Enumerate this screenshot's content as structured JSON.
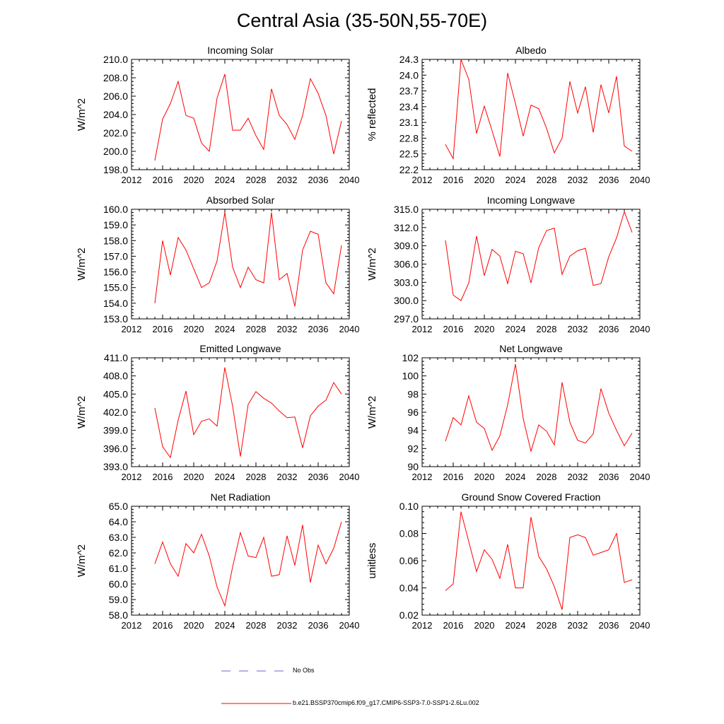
{
  "page": {
    "title": "Central Asia (35-50N,55-70E)"
  },
  "colors": {
    "series": "#ff0000",
    "noobs": "#6a6ad6",
    "axis": "#000000"
  },
  "legend": {
    "noobs_label": "No Obs",
    "series_label": "b.e21.BSSP370cmip6.f09_g17.CMIP6-SSP3-7.0-SSP1-2.6Lu.002"
  },
  "chart_data": [
    {
      "type": "line",
      "title": "Incoming Solar",
      "ylabel": "W/m^2",
      "xlim": [
        2012,
        2040
      ],
      "ylim": [
        198.0,
        210.0
      ],
      "xticks": [
        2012,
        2016,
        2020,
        2024,
        2028,
        2032,
        2036,
        2040
      ],
      "yticks": [
        198.0,
        200.0,
        202.0,
        204.0,
        206.0,
        208.0,
        210.0
      ],
      "ytick_labels": [
        "198.0",
        "200.0",
        "202.0",
        "204.0",
        "206.0",
        "208.0",
        "210.0"
      ],
      "x": [
        2015,
        2016,
        2017,
        2018,
        2019,
        2020,
        2021,
        2022,
        2023,
        2024,
        2025,
        2026,
        2027,
        2028,
        2029,
        2030,
        2031,
        2032,
        2033,
        2034,
        2035,
        2036,
        2037,
        2038,
        2039
      ],
      "series": [
        {
          "values": [
            199.0,
            203.5,
            205.2,
            207.6,
            203.9,
            203.6,
            200.9,
            200.0,
            205.8,
            208.4,
            202.3,
            202.3,
            203.6,
            201.7,
            200.2,
            206.8,
            203.9,
            202.9,
            201.3,
            203.9,
            207.9,
            206.3,
            203.9,
            199.7,
            203.3
          ]
        }
      ]
    },
    {
      "type": "line",
      "title": "Albedo",
      "ylabel": "% reflected",
      "xlim": [
        2012,
        2040
      ],
      "ylim": [
        22.2,
        24.3
      ],
      "xticks": [
        2012,
        2016,
        2020,
        2024,
        2028,
        2032,
        2036,
        2040
      ],
      "yticks": [
        22.2,
        22.5,
        22.8,
        23.1,
        23.4,
        23.7,
        24.0,
        24.3
      ],
      "ytick_labels": [
        "22.2",
        "22.5",
        "22.8",
        "23.1",
        "23.4",
        "23.7",
        "24.0",
        "24.3"
      ],
      "x": [
        2015,
        2016,
        2017,
        2018,
        2019,
        2020,
        2021,
        2022,
        2023,
        2024,
        2025,
        2026,
        2027,
        2028,
        2029,
        2030,
        2031,
        2032,
        2033,
        2034,
        2035,
        2036,
        2037,
        2038,
        2039
      ],
      "series": [
        {
          "values": [
            22.68,
            22.41,
            24.3,
            23.92,
            22.89,
            23.41,
            22.94,
            22.45,
            24.04,
            23.46,
            22.84,
            23.43,
            23.36,
            22.99,
            22.52,
            22.8,
            23.88,
            23.28,
            23.78,
            22.91,
            23.82,
            23.28,
            23.98,
            22.65,
            22.55
          ]
        }
      ]
    },
    {
      "type": "line",
      "title": "Absorbed Solar",
      "ylabel": "W/m^2",
      "xlim": [
        2012,
        2040
      ],
      "ylim": [
        153.0,
        160.0
      ],
      "xticks": [
        2012,
        2016,
        2020,
        2024,
        2028,
        2032,
        2036,
        2040
      ],
      "yticks": [
        153.0,
        154.0,
        155.0,
        156.0,
        157.0,
        158.0,
        159.0,
        160.0
      ],
      "ytick_labels": [
        "153.0",
        "154.0",
        "155.0",
        "156.0",
        "157.0",
        "158.0",
        "159.0",
        "160.0"
      ],
      "x": [
        2015,
        2016,
        2017,
        2018,
        2019,
        2020,
        2021,
        2022,
        2023,
        2024,
        2025,
        2026,
        2027,
        2028,
        2029,
        2030,
        2031,
        2032,
        2033,
        2034,
        2035,
        2036,
        2037,
        2038,
        2039
      ],
      "series": [
        {
          "values": [
            154.0,
            158.0,
            155.8,
            158.2,
            157.4,
            156.2,
            155.0,
            155.3,
            156.7,
            159.8,
            156.3,
            155.0,
            156.3,
            155.5,
            155.3,
            159.8,
            155.5,
            155.9,
            153.8,
            157.4,
            158.6,
            158.4,
            155.3,
            154.6,
            157.7
          ]
        }
      ]
    },
    {
      "type": "line",
      "title": "Incoming Longwave",
      "ylabel": "W/m^2",
      "xlim": [
        2012,
        2040
      ],
      "ylim": [
        297.0,
        315.0
      ],
      "xticks": [
        2012,
        2016,
        2020,
        2024,
        2028,
        2032,
        2036,
        2040
      ],
      "yticks": [
        297.0,
        300.0,
        303.0,
        306.0,
        309.0,
        312.0,
        315.0
      ],
      "ytick_labels": [
        "297.0",
        "300.0",
        "303.0",
        "306.0",
        "309.0",
        "312.0",
        "315.0"
      ],
      "x": [
        2015,
        2016,
        2017,
        2018,
        2019,
        2020,
        2021,
        2022,
        2023,
        2024,
        2025,
        2026,
        2027,
        2028,
        2029,
        2030,
        2031,
        2032,
        2033,
        2034,
        2035,
        2036,
        2037,
        2038,
        2039
      ],
      "series": [
        {
          "values": [
            309.9,
            300.9,
            300.0,
            302.9,
            310.6,
            304.1,
            308.4,
            307.3,
            302.8,
            308.1,
            307.7,
            302.9,
            308.7,
            311.5,
            311.9,
            304.3,
            307.3,
            308.2,
            308.6,
            302.5,
            302.8,
            307.2,
            310.3,
            314.6,
            311.2
          ]
        }
      ]
    },
    {
      "type": "line",
      "title": "Emitted Longwave",
      "ylabel": "W/m^2",
      "xlim": [
        2012,
        2040
      ],
      "ylim": [
        393.0,
        411.0
      ],
      "xticks": [
        2012,
        2016,
        2020,
        2024,
        2028,
        2032,
        2036,
        2040
      ],
      "yticks": [
        393.0,
        396.0,
        399.0,
        402.0,
        405.0,
        408.0,
        411.0
      ],
      "ytick_labels": [
        "393.0",
        "396.0",
        "399.0",
        "402.0",
        "405.0",
        "408.0",
        "411.0"
      ],
      "x": [
        2015,
        2016,
        2017,
        2018,
        2019,
        2020,
        2021,
        2022,
        2023,
        2024,
        2025,
        2026,
        2027,
        2028,
        2029,
        2030,
        2031,
        2032,
        2033,
        2034,
        2035,
        2036,
        2037,
        2038,
        2039
      ],
      "series": [
        {
          "values": [
            402.7,
            396.3,
            394.5,
            400.7,
            405.5,
            398.3,
            400.5,
            400.9,
            399.7,
            409.4,
            403.0,
            394.7,
            403.3,
            405.4,
            404.3,
            403.5,
            402.2,
            401.1,
            401.2,
            396.1,
            401.4,
            403.0,
            404.0,
            406.9,
            405.0
          ]
        }
      ]
    },
    {
      "type": "line",
      "title": "Net Longwave",
      "ylabel": "W/m^2",
      "xlim": [
        2012,
        2040
      ],
      "ylim": [
        90,
        102
      ],
      "xticks": [
        2012,
        2016,
        2020,
        2024,
        2028,
        2032,
        2036,
        2040
      ],
      "yticks": [
        90,
        92,
        94,
        96,
        98,
        100,
        102
      ],
      "ytick_labels": [
        "90",
        "92",
        "94",
        "96",
        "98",
        "100",
        "102"
      ],
      "x": [
        2015,
        2016,
        2017,
        2018,
        2019,
        2020,
        2021,
        2022,
        2023,
        2024,
        2025,
        2026,
        2027,
        2028,
        2029,
        2030,
        2031,
        2032,
        2033,
        2034,
        2035,
        2036,
        2037,
        2038,
        2039
      ],
      "series": [
        {
          "values": [
            92.8,
            95.4,
            94.6,
            97.8,
            94.9,
            94.2,
            91.8,
            93.4,
            96.8,
            101.3,
            95.3,
            91.7,
            94.6,
            93.9,
            92.4,
            99.3,
            94.9,
            92.9,
            92.6,
            93.6,
            98.6,
            95.9,
            94.0,
            92.3,
            93.7
          ]
        }
      ]
    },
    {
      "type": "line",
      "title": "Net Radiation",
      "ylabel": "W/m^2",
      "xlim": [
        2012,
        2040
      ],
      "ylim": [
        58.0,
        65.0
      ],
      "xticks": [
        2012,
        2016,
        2020,
        2024,
        2028,
        2032,
        2036,
        2040
      ],
      "yticks": [
        58.0,
        59.0,
        60.0,
        61.0,
        62.0,
        63.0,
        64.0,
        65.0
      ],
      "ytick_labels": [
        "58.0",
        "59.0",
        "60.0",
        "61.0",
        "62.0",
        "63.0",
        "64.0",
        "65.0"
      ],
      "x": [
        2015,
        2016,
        2017,
        2018,
        2019,
        2020,
        2021,
        2022,
        2023,
        2024,
        2025,
        2026,
        2027,
        2028,
        2029,
        2030,
        2031,
        2032,
        2033,
        2034,
        2035,
        2036,
        2037,
        2038,
        2039
      ],
      "series": [
        {
          "values": [
            61.3,
            62.7,
            61.3,
            60.5,
            62.6,
            62.0,
            63.2,
            61.8,
            59.8,
            58.6,
            61.1,
            63.3,
            61.8,
            61.7,
            63.0,
            60.5,
            60.6,
            63.1,
            61.2,
            63.8,
            60.1,
            62.5,
            61.3,
            62.3,
            64.0
          ]
        }
      ]
    },
    {
      "type": "line",
      "title": "Ground Snow Covered Fraction",
      "ylabel": "unitless",
      "xlim": [
        2012,
        2040
      ],
      "ylim": [
        0.02,
        0.1
      ],
      "xticks": [
        2012,
        2016,
        2020,
        2024,
        2028,
        2032,
        2036,
        2040
      ],
      "yticks": [
        0.02,
        0.04,
        0.06,
        0.08,
        0.1
      ],
      "ytick_labels": [
        "0.02",
        "0.04",
        "0.06",
        "0.08",
        "0.10"
      ],
      "x": [
        2015,
        2016,
        2017,
        2018,
        2019,
        2020,
        2021,
        2022,
        2023,
        2024,
        2025,
        2026,
        2027,
        2028,
        2029,
        2030,
        2031,
        2032,
        2033,
        2034,
        2035,
        2036,
        2037,
        2038,
        2039
      ],
      "series": [
        {
          "values": [
            0.038,
            0.043,
            0.096,
            0.074,
            0.052,
            0.068,
            0.061,
            0.047,
            0.072,
            0.04,
            0.04,
            0.092,
            0.063,
            0.054,
            0.041,
            0.024,
            0.077,
            0.079,
            0.077,
            0.064,
            0.066,
            0.068,
            0.08,
            0.044,
            0.046
          ]
        }
      ]
    }
  ]
}
